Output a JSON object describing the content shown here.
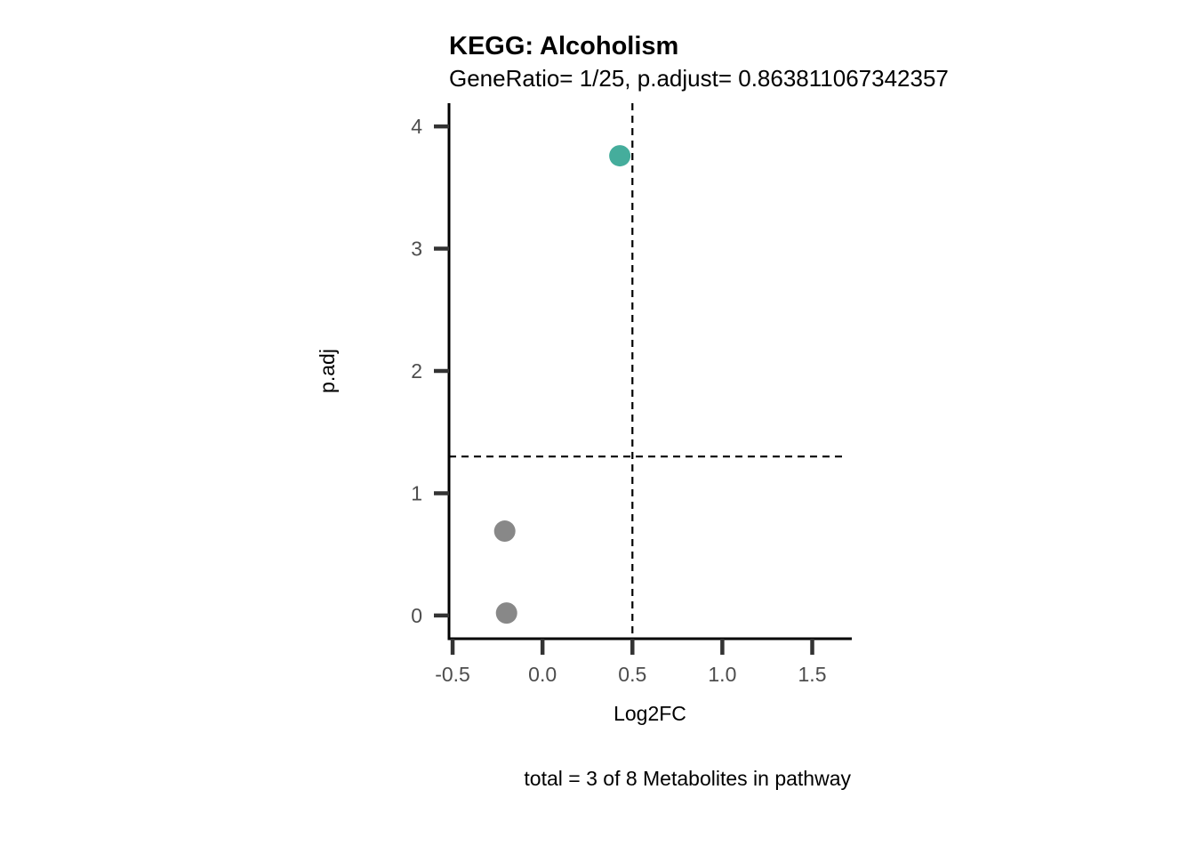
{
  "chart_data": {
    "type": "scatter",
    "title": "KEGG: Alcoholism",
    "subtitle": "GeneRatio= 1/25, p.adjust= 0.863811067342357",
    "xlabel": "Log2FC",
    "ylabel": "p.adj",
    "caption": "total = 3 of 8 Metabolites in pathway",
    "xlim": [
      -0.52,
      1.72
    ],
    "ylim": [
      -0.19,
      4.19
    ],
    "x_ticks": [
      -0.5,
      0.0,
      0.5,
      1.0,
      1.5
    ],
    "x_tick_labels": [
      "-0.5",
      "0.0",
      "0.5",
      "1.0",
      "1.5"
    ],
    "y_ticks": [
      0,
      1,
      2,
      3,
      4
    ],
    "y_tick_labels": [
      "0",
      "1",
      "2",
      "3",
      "4"
    ],
    "thresholds": {
      "vertical_x": 0.5,
      "horizontal_y": 1.3
    },
    "grid": false,
    "legend": "none",
    "points": [
      {
        "x": 0.43,
        "y": 3.76,
        "color": "#45ad9c"
      },
      {
        "x": -0.21,
        "y": 0.69,
        "color": "#888888"
      },
      {
        "x": -0.2,
        "y": 0.02,
        "color": "#888888"
      }
    ]
  }
}
